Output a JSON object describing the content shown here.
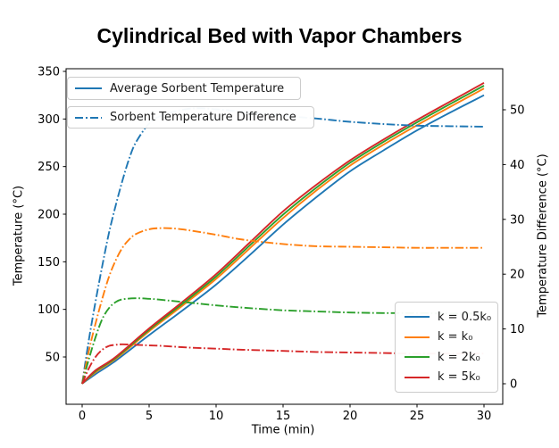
{
  "chart_data": {
    "type": "line",
    "title": "Cylindrical Bed with Vapor Chambers",
    "xlabel": "Time (min)",
    "ylabel_left": "Temperature (°C)",
    "ylabel_right": "Temperature Difference (°C)",
    "xticks": [
      0,
      5,
      10,
      15,
      20,
      25,
      30
    ],
    "yticks_left": [
      50,
      100,
      150,
      200,
      250,
      300,
      350
    ],
    "yticks_right": [
      0,
      10,
      20,
      30,
      40,
      50
    ],
    "xlim": [
      -1.2,
      31.4
    ],
    "ylim_left": [
      0,
      353
    ],
    "ylim_right": [
      -3.5,
      57.5
    ],
    "grid": false,
    "legend_top": [
      {
        "label": "Average Sorbent Temperature",
        "style": "solid"
      },
      {
        "label": "Sorbent Temperature Difference",
        "style": "dashdot"
      }
    ],
    "legend_bottom_title": "",
    "series": [
      {
        "name": "k = 0.5k₀",
        "role": "average",
        "axis": "left",
        "style": "solid",
        "color": "#1f77b4",
        "points": [
          [
            0,
            22
          ],
          [
            1,
            32
          ],
          [
            2.5,
            46
          ],
          [
            5,
            73
          ],
          [
            7.5,
            99
          ],
          [
            10,
            126
          ],
          [
            12.5,
            157
          ],
          [
            15,
            189
          ],
          [
            17.5,
            218
          ],
          [
            20,
            245
          ],
          [
            22.5,
            267
          ],
          [
            25,
            288
          ],
          [
            27.5,
            307
          ],
          [
            30,
            325
          ]
        ]
      },
      {
        "name": "k = k₀",
        "role": "average",
        "axis": "left",
        "style": "solid",
        "color": "#ff7f0e",
        "points": [
          [
            0,
            22
          ],
          [
            1,
            34
          ],
          [
            2.5,
            48
          ],
          [
            5,
            77
          ],
          [
            7.5,
            104
          ],
          [
            10,
            132
          ],
          [
            12.5,
            164
          ],
          [
            15,
            196
          ],
          [
            17.5,
            225
          ],
          [
            20,
            251
          ],
          [
            22.5,
            273
          ],
          [
            25,
            293.5
          ],
          [
            27.5,
            313
          ],
          [
            30,
            332
          ]
        ]
      },
      {
        "name": "k = 2k₀",
        "role": "average",
        "axis": "left",
        "style": "solid",
        "color": "#2ca02c",
        "points": [
          [
            0,
            22
          ],
          [
            1,
            35
          ],
          [
            2.5,
            49
          ],
          [
            5,
            78.5
          ],
          [
            7.5,
            106
          ],
          [
            10,
            134.5
          ],
          [
            12.5,
            167
          ],
          [
            15,
            199.5
          ],
          [
            17.5,
            228
          ],
          [
            20,
            254
          ],
          [
            22.5,
            276
          ],
          [
            25,
            296.5
          ],
          [
            27.5,
            316
          ],
          [
            30,
            335
          ]
        ]
      },
      {
        "name": "k = 5k₀",
        "role": "average",
        "axis": "left",
        "style": "solid",
        "color": "#d62728",
        "points": [
          [
            0,
            22
          ],
          [
            1,
            36
          ],
          [
            2.5,
            50
          ],
          [
            5,
            80
          ],
          [
            7.5,
            108
          ],
          [
            10,
            137
          ],
          [
            12.5,
            170
          ],
          [
            15,
            203
          ],
          [
            17.5,
            231
          ],
          [
            20,
            256.5
          ],
          [
            22.5,
            278.5
          ],
          [
            25,
            299
          ],
          [
            27.5,
            318.5
          ],
          [
            30,
            338
          ]
        ]
      },
      {
        "name": "k = 0.5k₀",
        "role": "difference",
        "axis": "right",
        "style": "dashdot",
        "color": "#1f77b4",
        "points": [
          [
            0,
            0
          ],
          [
            0.5,
            8
          ],
          [
            1,
            15
          ],
          [
            1.5,
            21.5
          ],
          [
            2,
            27.5
          ],
          [
            2.5,
            32.5
          ],
          [
            3,
            37
          ],
          [
            3.5,
            41
          ],
          [
            4,
            44
          ],
          [
            5,
            47.5
          ],
          [
            6,
            49
          ],
          [
            8,
            50.2
          ],
          [
            10,
            50.1
          ],
          [
            12,
            49.6
          ],
          [
            15,
            48.9
          ],
          [
            17.5,
            48.4
          ],
          [
            20,
            47.8
          ],
          [
            22.5,
            47.4
          ],
          [
            25,
            47.1
          ],
          [
            27.5,
            47
          ],
          [
            30,
            46.9
          ]
        ]
      },
      {
        "name": "k = k₀",
        "role": "difference",
        "axis": "right",
        "style": "dashdot",
        "color": "#ff7f0e",
        "points": [
          [
            0,
            0
          ],
          [
            0.5,
            6
          ],
          [
            1,
            11
          ],
          [
            1.5,
            15.5
          ],
          [
            2,
            19.5
          ],
          [
            2.5,
            22.5
          ],
          [
            3,
            24.8
          ],
          [
            3.5,
            26.3
          ],
          [
            4,
            27.3
          ],
          [
            5,
            28.2
          ],
          [
            6,
            28.4
          ],
          [
            7,
            28.3
          ],
          [
            8,
            28
          ],
          [
            10,
            27.2
          ],
          [
            12,
            26.3
          ],
          [
            15,
            25.5
          ],
          [
            17.5,
            25.1
          ],
          [
            20,
            25
          ],
          [
            22.5,
            24.9
          ],
          [
            25,
            24.8
          ],
          [
            27.5,
            24.8
          ],
          [
            30,
            24.8
          ]
        ]
      },
      {
        "name": "k = 2k₀",
        "role": "difference",
        "axis": "right",
        "style": "dashdot",
        "color": "#2ca02c",
        "points": [
          [
            0,
            0
          ],
          [
            0.5,
            4.5
          ],
          [
            1,
            8.5
          ],
          [
            1.5,
            11.8
          ],
          [
            2,
            13.8
          ],
          [
            2.5,
            14.9
          ],
          [
            3,
            15.4
          ],
          [
            4,
            15.6
          ],
          [
            5,
            15.5
          ],
          [
            6,
            15.3
          ],
          [
            8,
            14.8
          ],
          [
            10,
            14.3
          ],
          [
            12,
            13.9
          ],
          [
            15,
            13.4
          ],
          [
            17.5,
            13.2
          ],
          [
            20,
            13
          ],
          [
            22.5,
            12.9
          ],
          [
            25,
            12.9
          ],
          [
            27.5,
            12.8
          ],
          [
            30,
            12.8
          ]
        ]
      },
      {
        "name": "k = 5k₀",
        "role": "difference",
        "axis": "right",
        "style": "dashdot",
        "color": "#d62728",
        "points": [
          [
            0,
            0
          ],
          [
            0.5,
            2.8
          ],
          [
            1,
            4.9
          ],
          [
            1.5,
            6.2
          ],
          [
            2,
            6.9
          ],
          [
            2.5,
            7.1
          ],
          [
            3,
            7.2
          ],
          [
            4,
            7.1
          ],
          [
            5,
            7
          ],
          [
            6,
            6.9
          ],
          [
            8,
            6.6
          ],
          [
            10,
            6.4
          ],
          [
            12,
            6.2
          ],
          [
            15,
            6
          ],
          [
            17.5,
            5.8
          ],
          [
            20,
            5.7
          ],
          [
            22.5,
            5.6
          ],
          [
            25,
            5.5
          ],
          [
            27.5,
            5.5
          ],
          [
            30,
            5.5
          ]
        ]
      }
    ]
  }
}
